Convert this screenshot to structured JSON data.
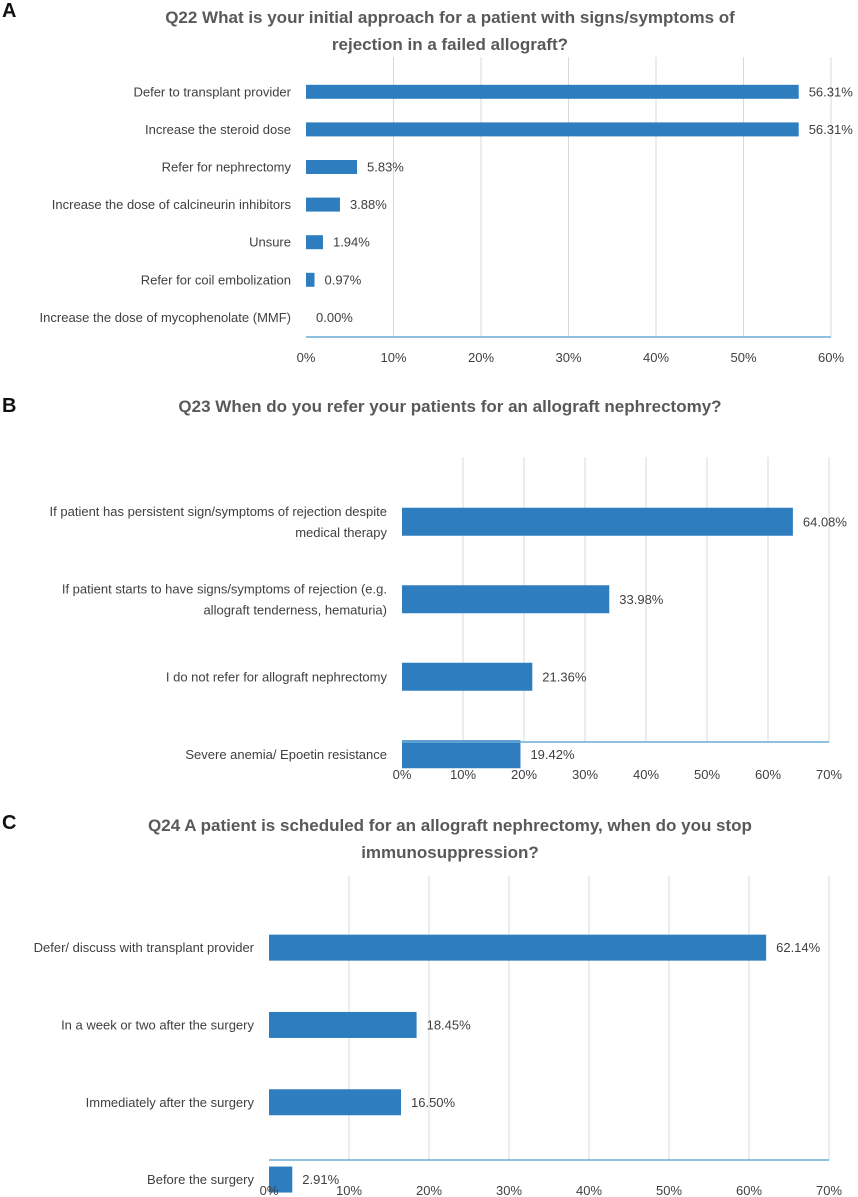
{
  "colors": {
    "bar": "#2e7ebf",
    "grid": "#d9d9d9",
    "axis": "#6baed6",
    "text": "#404040",
    "title": "#595959"
  },
  "chart_data": [
    {
      "panel": "A",
      "type": "bar",
      "orientation": "horizontal",
      "title": "Q22 What is your initial approach for a patient with signs/symptoms of rejection in a failed allograft?",
      "title_lines": [
        "Q22 What is your initial approach for a patient with signs/symptoms of",
        "rejection in a failed allograft?"
      ],
      "categories": [
        [
          "Defer to transplant provider"
        ],
        [
          "Increase the steroid dose"
        ],
        [
          "Refer for nephrectomy"
        ],
        [
          "Increase the dose of calcineurin inhibitors"
        ],
        [
          "Unsure"
        ],
        [
          "Refer for coil embolization"
        ],
        [
          "Increase the dose of mycophenolate (MMF)"
        ]
      ],
      "values": [
        56.31,
        56.31,
        5.83,
        3.88,
        1.94,
        0.97,
        0.0
      ],
      "value_labels": [
        "56.31%",
        "56.31%",
        "5.83%",
        "3.88%",
        "1.94%",
        "0.97%",
        "0.00%"
      ],
      "xlim": [
        0,
        60
      ],
      "ticks": [
        0,
        10,
        20,
        30,
        40,
        50,
        60
      ],
      "tick_labels": [
        "0%",
        "10%",
        "20%",
        "30%",
        "40%",
        "50%",
        "60%"
      ],
      "grid": true
    },
    {
      "panel": "B",
      "type": "bar",
      "orientation": "horizontal",
      "title": "Q23 When do you refer your patients for an allograft nephrectomy?",
      "title_lines": [
        "Q23 When do you refer your patients for an allograft nephrectomy?"
      ],
      "categories": [
        [
          "If patient has persistent sign/symptoms of rejection despite",
          "medical therapy"
        ],
        [
          "If patient starts to have signs/symptoms of rejection (e.g.",
          "allograft tenderness, hematuria)"
        ],
        [
          "I do not refer for allograft nephrectomy"
        ],
        [
          "Severe anemia/ Epoetin resistance"
        ]
      ],
      "values": [
        64.08,
        33.98,
        21.36,
        19.42
      ],
      "value_labels": [
        "64.08%",
        "33.98%",
        "21.36%",
        "19.42%"
      ],
      "xlim": [
        0,
        70
      ],
      "ticks": [
        0,
        10,
        20,
        30,
        40,
        50,
        60,
        70
      ],
      "tick_labels": [
        "0%",
        "10%",
        "20%",
        "30%",
        "40%",
        "50%",
        "60%",
        "70%"
      ],
      "grid": true
    },
    {
      "panel": "C",
      "type": "bar",
      "orientation": "horizontal",
      "title": "Q24 A patient is scheduled for an allograft nephrectomy, when do you stop immunosuppression?",
      "title_lines": [
        "Q24 A patient is scheduled for an allograft nephrectomy, when do you stop",
        "immunosuppression?"
      ],
      "categories": [
        [
          "Defer/ discuss with transplant provider"
        ],
        [
          "In a week or two after the surgery"
        ],
        [
          "Immediately after the surgery"
        ],
        [
          "Before the surgery"
        ]
      ],
      "values": [
        62.14,
        18.45,
        16.5,
        2.91
      ],
      "value_labels": [
        "62.14%",
        "18.45%",
        "16.50%",
        "2.91%"
      ],
      "xlim": [
        0,
        70
      ],
      "ticks": [
        0,
        10,
        20,
        30,
        40,
        50,
        60,
        70
      ],
      "tick_labels": [
        "0%",
        "10%",
        "20%",
        "30%",
        "40%",
        "50%",
        "60%",
        "70%"
      ],
      "grid": true
    }
  ]
}
